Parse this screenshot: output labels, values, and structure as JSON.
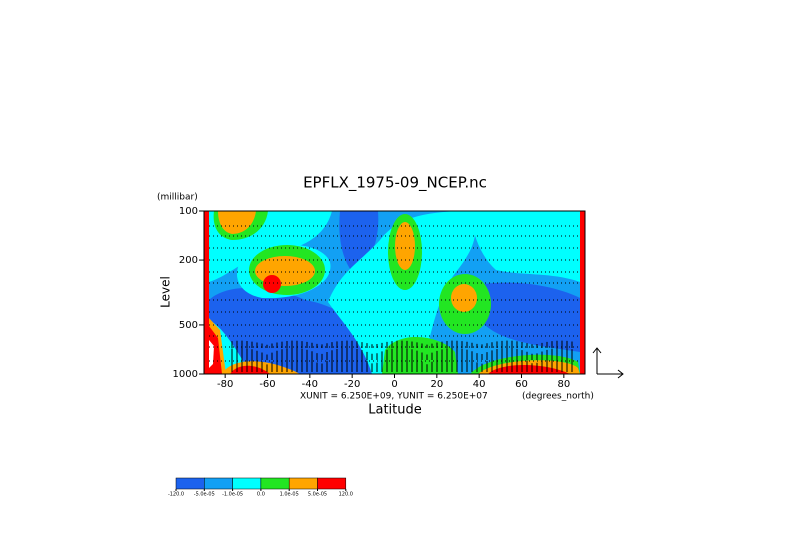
{
  "chart_data": {
    "type": "contour",
    "title": "EPFLX_1975-09_NCEP.nc",
    "y_unit_label": "(millibar)",
    "y_label": "Level",
    "x_label": "Latitude",
    "x_unit_label": "(degrees_north)",
    "vector_note": "XUNIT = 6.250E+09, YUNIT = 6.250E+07",
    "xlim": [
      -90,
      90
    ],
    "xticks": [
      -80,
      -60,
      -40,
      -20,
      0,
      20,
      40,
      60,
      80
    ],
    "ylim": [
      1000,
      100
    ],
    "yscale": "log",
    "yticks": [
      100,
      200,
      500,
      1000
    ],
    "colorbar": {
      "levels": [
        {
          "value": -120,
          "label": "-120.0"
        },
        {
          "value": -5e-05,
          "label": "-5.0e-05"
        },
        {
          "value": -1e-05,
          "label": "-1.0e-05"
        },
        {
          "value": 0,
          "label": "0.0"
        },
        {
          "value": 1e-05,
          "label": "1.0e-05"
        },
        {
          "value": 5e-05,
          "label": "5.0e-05"
        },
        {
          "value": 120,
          "label": "120.0"
        }
      ],
      "colors": [
        "#1c62ee",
        "#12a0f4",
        "#00ffff",
        "#22e622",
        "#ffa500",
        "#ff0000"
      ]
    }
  }
}
